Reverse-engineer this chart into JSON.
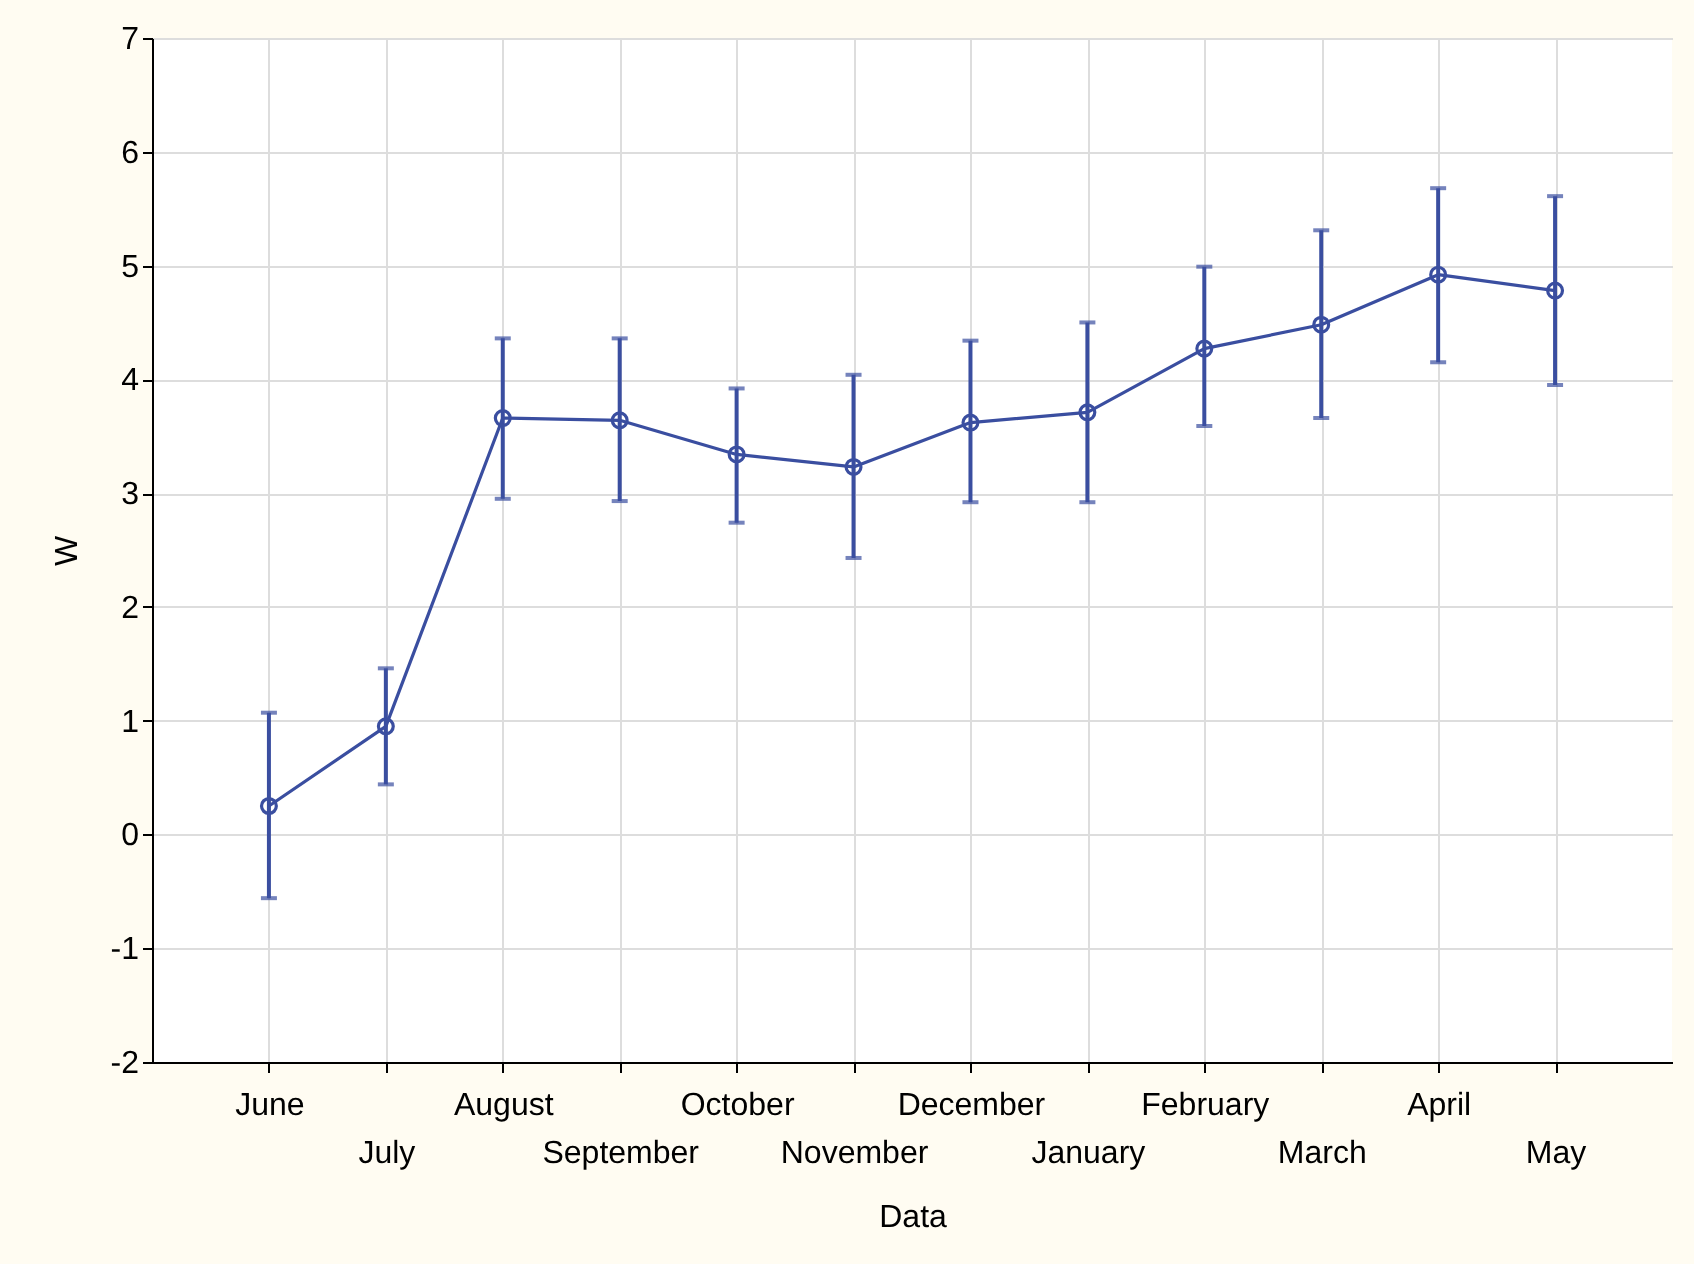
{
  "chart_data": {
    "type": "line",
    "xlabel": "Data",
    "ylabel": "W",
    "categories": [
      "June",
      "July",
      "August",
      "September",
      "October",
      "November",
      "December",
      "January",
      "February",
      "March",
      "April",
      "May"
    ],
    "series": [
      {
        "color": "#3a4ea0",
        "values": [
          0.25,
          0.95,
          3.66,
          3.64,
          3.34,
          3.23,
          3.62,
          3.71,
          4.27,
          4.48,
          4.92,
          4.78
        ],
        "errors": [
          [
            -0.56,
            1.07
          ],
          [
            0.44,
            1.46
          ],
          [
            2.95,
            4.36
          ],
          [
            2.93,
            4.36
          ],
          [
            2.74,
            3.92
          ],
          [
            2.43,
            4.04
          ],
          [
            2.92,
            4.34
          ],
          [
            2.92,
            4.5
          ],
          [
            3.59,
            4.99
          ],
          [
            3.66,
            5.31
          ],
          [
            4.15,
            5.68
          ],
          [
            3.95,
            5.61
          ]
        ]
      }
    ],
    "ylim": [
      -2,
      7
    ],
    "yticks": [
      -2,
      -1,
      0,
      1,
      2,
      3,
      4,
      5,
      6,
      7
    ],
    "grid": true,
    "marker": "circle",
    "line_style": "solid"
  }
}
